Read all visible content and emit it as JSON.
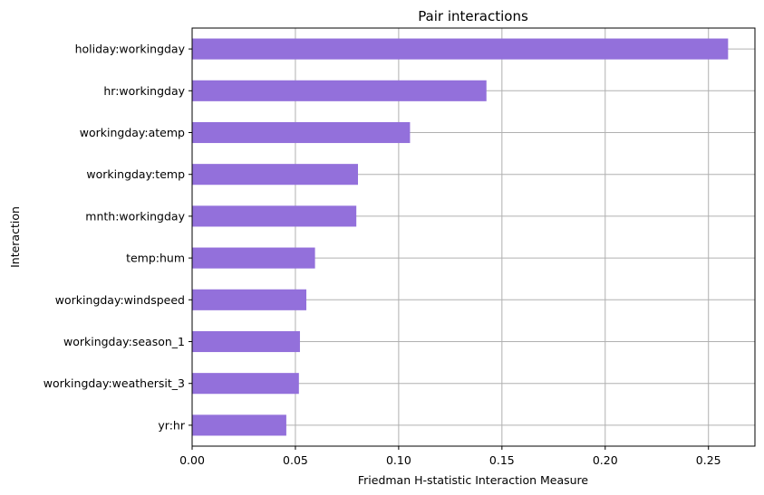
{
  "chart_data": {
    "type": "bar",
    "orientation": "horizontal",
    "title": "Pair interactions",
    "xlabel": "Friedman H-statistic Interaction Measure",
    "ylabel": "Interaction",
    "categories": [
      "holiday:workingday",
      "hr:workingday",
      "workingday:atemp",
      "workingday:temp",
      "mnth:workingday",
      "temp:hum",
      "workingday:windspeed",
      "workingday:season_1",
      "workingday:weathersit_3",
      "yr:hr"
    ],
    "values": [
      0.2595,
      0.1425,
      0.1055,
      0.0803,
      0.0795,
      0.0595,
      0.0553,
      0.0522,
      0.0517,
      0.0456
    ],
    "xlim": [
      0,
      0.2725
    ],
    "xticks": [
      0.0,
      0.05,
      0.1,
      0.15,
      0.2,
      0.25
    ],
    "xtick_labels": [
      "0.00",
      "0.05",
      "0.10",
      "0.15",
      "0.20",
      "0.25"
    ],
    "grid": true,
    "bar_color": "#9370DB",
    "grid_color": "#b0b0b0"
  }
}
